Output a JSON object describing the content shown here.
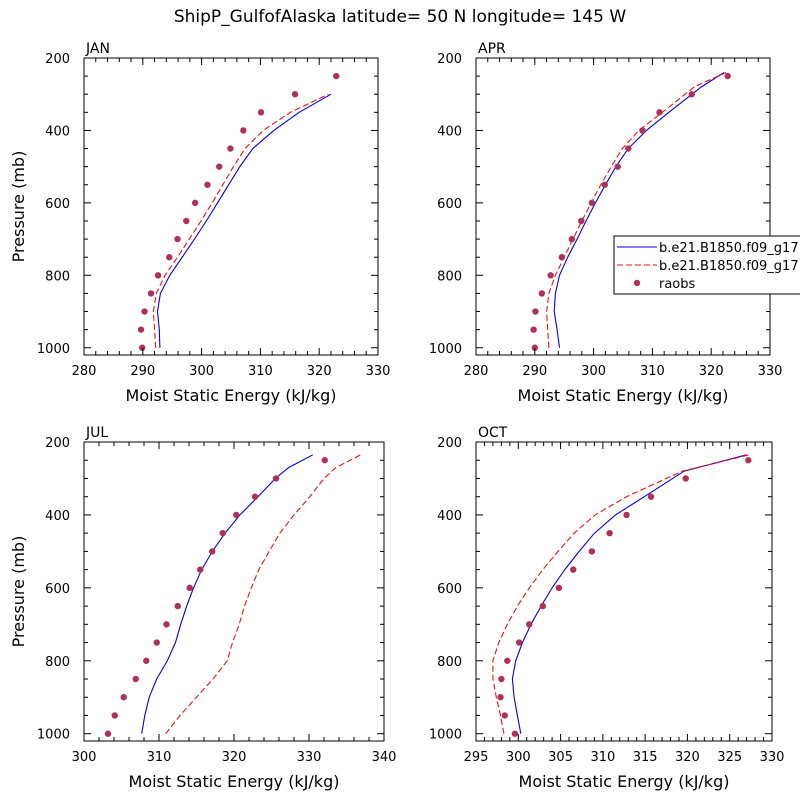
{
  "title": "ShipP_GulfofAlaska  latitude= 50 N longitude= 145 W",
  "colors": {
    "model1": "#0000ee",
    "model2": "#ee1111",
    "obs": "#b0305a",
    "axis": "#000000"
  },
  "legend": {
    "entries": [
      {
        "label": "b.e21.B1850.f09_g17",
        "style": "solid-line",
        "color": "#0000ee"
      },
      {
        "label": "b.e21.B1850.f09_g17",
        "style": "dashed-line",
        "color": "#ee1111"
      },
      {
        "label": "raobs",
        "style": "dot",
        "color": "#b0305a"
      }
    ]
  },
  "chart_data": [
    {
      "type": "line",
      "panel": "JAN",
      "title": "JAN",
      "xlabel": "Moist Static Energy (kJ/kg)",
      "ylabel": "Pressure (mb)",
      "xlim": [
        280,
        330
      ],
      "ylim": [
        1020,
        200
      ],
      "x_ticks": [
        280,
        290,
        300,
        310,
        320,
        330
      ],
      "y_ticks": [
        200,
        400,
        600,
        800,
        1000
      ],
      "series": [
        {
          "key": "model1",
          "style": "solid",
          "x": [
            292.9,
            292.8,
            292.5,
            293.0,
            294.6,
            296.7,
            298.8,
            300.8,
            302.7,
            304.6,
            306.5,
            308.7,
            312.3,
            316.6,
            322.0
          ],
          "y": [
            1000,
            950,
            900,
            850,
            800,
            750,
            700,
            650,
            600,
            550,
            500,
            450,
            400,
            350,
            300
          ]
        },
        {
          "key": "model2",
          "style": "dashed",
          "x": [
            292.2,
            292.0,
            291.8,
            292.3,
            293.8,
            295.9,
            297.9,
            299.9,
            301.8,
            303.6,
            305.4,
            307.4,
            310.5,
            315.1,
            321.6
          ],
          "y": [
            1000,
            950,
            900,
            850,
            800,
            750,
            700,
            650,
            600,
            550,
            500,
            450,
            400,
            350,
            300
          ]
        },
        {
          "key": "obs",
          "style": "dot",
          "x": [
            289.9,
            289.7,
            290.3,
            291.4,
            292.6,
            294.5,
            295.9,
            297.4,
            298.9,
            301.0,
            303.0,
            304.9,
            307.1,
            310.1,
            315.9,
            322.9
          ],
          "y": [
            1000,
            950,
            900,
            850,
            800,
            750,
            700,
            650,
            600,
            550,
            500,
            450,
            400,
            350,
            300,
            250
          ]
        }
      ]
    },
    {
      "type": "line",
      "panel": "APR",
      "title": "APR",
      "xlabel": "Moist Static Energy (kJ/kg)",
      "ylabel": "",
      "xlim": [
        280,
        330
      ],
      "ylim": [
        1020,
        200
      ],
      "x_ticks": [
        280,
        290,
        300,
        310,
        320,
        330
      ],
      "y_ticks": [
        200,
        400,
        600,
        800,
        1000
      ],
      "series": [
        {
          "key": "model1",
          "style": "solid",
          "x": [
            294.2,
            293.8,
            293.3,
            293.5,
            294.2,
            295.6,
            297.2,
            298.7,
            300.3,
            302.0,
            303.8,
            305.9,
            309.0,
            312.8,
            318.3,
            322.2
          ],
          "y": [
            1000,
            950,
            900,
            850,
            800,
            750,
            700,
            650,
            600,
            550,
            500,
            450,
            400,
            350,
            280,
            240
          ]
        },
        {
          "key": "model2",
          "style": "dashed",
          "x": [
            292.4,
            292.2,
            292.0,
            292.4,
            293.5,
            295.0,
            296.5,
            298.0,
            299.6,
            301.2,
            303.0,
            304.9,
            307.7,
            311.7,
            317.1,
            322.5
          ],
          "y": [
            1000,
            950,
            900,
            850,
            800,
            750,
            700,
            650,
            600,
            550,
            500,
            450,
            400,
            350,
            280,
            240
          ]
        },
        {
          "key": "obs",
          "style": "dot",
          "x": [
            290.0,
            289.8,
            290.1,
            291.2,
            292.7,
            294.6,
            296.3,
            297.9,
            299.7,
            301.9,
            304.1,
            305.9,
            308.3,
            311.2,
            316.7,
            322.8
          ],
          "y": [
            1000,
            950,
            900,
            850,
            800,
            750,
            700,
            650,
            600,
            550,
            500,
            450,
            400,
            350,
            300,
            250
          ]
        }
      ]
    },
    {
      "type": "line",
      "panel": "JUL",
      "title": "JUL",
      "xlabel": "Moist Static Energy (kJ/kg)",
      "ylabel": "Pressure (mb)",
      "xlim": [
        300,
        340
      ],
      "ylim": [
        1020,
        200
      ],
      "x_ticks": [
        300,
        310,
        320,
        330,
        340
      ],
      "y_ticks": [
        200,
        400,
        600,
        800,
        1000
      ],
      "series": [
        {
          "key": "model1",
          "style": "solid",
          "x": [
            307.7,
            308.1,
            308.7,
            309.7,
            311.1,
            312.2,
            312.9,
            313.7,
            314.6,
            315.7,
            317.1,
            318.8,
            320.8,
            323.2,
            325.5,
            327.3,
            330.5
          ],
          "y": [
            1000,
            950,
            900,
            850,
            800,
            750,
            700,
            650,
            600,
            550,
            500,
            450,
            400,
            350,
            300,
            270,
            235
          ]
        },
        {
          "key": "model2",
          "style": "dashed",
          "x": [
            310.9,
            312.8,
            315.0,
            317.2,
            319.1,
            319.8,
            320.7,
            321.4,
            322.3,
            323.3,
            324.7,
            326.1,
            328.0,
            330.1,
            332.0,
            333.6,
            336.9
          ],
          "y": [
            1000,
            950,
            900,
            850,
            800,
            750,
            700,
            650,
            600,
            550,
            500,
            450,
            400,
            350,
            300,
            270,
            235
          ]
        },
        {
          "key": "obs",
          "style": "dot",
          "x": [
            303.2,
            304.1,
            305.3,
            306.9,
            308.3,
            309.7,
            311.0,
            312.5,
            314.1,
            315.5,
            317.1,
            318.5,
            320.3,
            322.8,
            325.6,
            332.1
          ],
          "y": [
            1000,
            950,
            900,
            850,
            800,
            750,
            700,
            650,
            600,
            550,
            500,
            450,
            400,
            350,
            300,
            250
          ]
        }
      ]
    },
    {
      "type": "line",
      "panel": "OCT",
      "title": "OCT",
      "xlabel": "Moist Static Energy (kJ/kg)",
      "ylabel": "",
      "xlim": [
        295,
        330
      ],
      "ylim": [
        1020,
        200
      ],
      "x_ticks": [
        295,
        300,
        305,
        310,
        315,
        320,
        325,
        330
      ],
      "y_ticks": [
        200,
        400,
        600,
        800,
        1000
      ],
      "series": [
        {
          "key": "model1",
          "style": "solid",
          "x": [
            300.3,
            299.9,
            299.5,
            299.3,
            299.7,
            300.5,
            301.5,
            302.7,
            304.0,
            305.5,
            307.2,
            309.0,
            311.5,
            314.9,
            319.6,
            327.0
          ],
          "y": [
            1000,
            950,
            900,
            850,
            800,
            750,
            700,
            650,
            600,
            550,
            500,
            450,
            400,
            350,
            280,
            235
          ]
        },
        {
          "key": "model2",
          "style": "dashed",
          "x": [
            298.3,
            297.9,
            297.4,
            297.0,
            297.0,
            297.7,
            298.7,
            299.9,
            301.3,
            302.9,
            304.7,
            306.6,
            309.1,
            312.8,
            319.4,
            327.3
          ],
          "y": [
            1000,
            950,
            900,
            850,
            800,
            750,
            700,
            650,
            600,
            550,
            500,
            450,
            400,
            350,
            280,
            235
          ]
        },
        {
          "key": "obs",
          "style": "dot",
          "x": [
            299.6,
            298.4,
            297.9,
            298.0,
            298.7,
            300.1,
            301.3,
            302.9,
            304.8,
            306.5,
            308.7,
            310.8,
            312.8,
            315.7,
            319.8,
            327.2
          ],
          "y": [
            1000,
            950,
            900,
            850,
            800,
            750,
            700,
            650,
            600,
            550,
            500,
            450,
            400,
            350,
            300,
            250
          ]
        }
      ]
    }
  ]
}
